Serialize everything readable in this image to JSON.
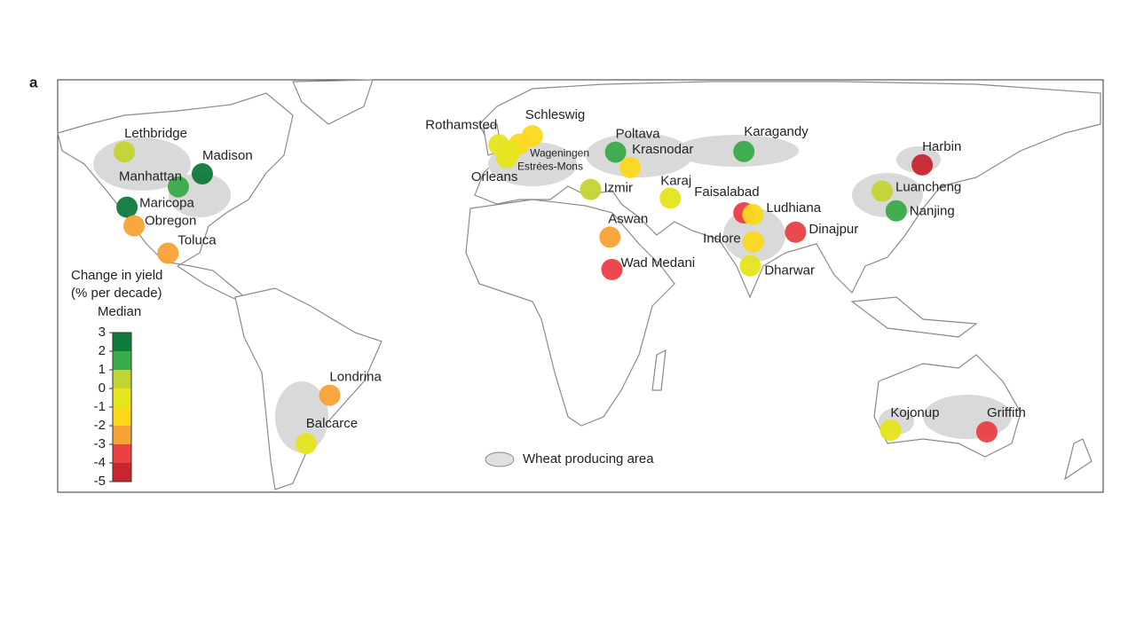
{
  "panel_label": "a",
  "map": {
    "lon_range": [
      -132.8,
      180.9
    ],
    "lat_range": [
      71.3,
      -52.4
    ]
  },
  "legend": {
    "title": [
      "Change in yield",
      "(% per decade)",
      "Median"
    ],
    "ticks": [
      3,
      2,
      1,
      0,
      -1,
      -2,
      -3,
      -4,
      -5
    ],
    "colors": [
      "#117a3d",
      "#3aaa4a",
      "#c3d432",
      "#e6e41e",
      "#fcd81c",
      "#f7a234",
      "#ea3f43",
      "#c8262e"
    ],
    "area_label": "Wheat producing area"
  },
  "sites": [
    {
      "name": "Lethbridge",
      "lat": 49.7,
      "lon": -112.8,
      "change": 0.5
    },
    {
      "name": "Madison",
      "lat": 43.1,
      "lon": -89.4,
      "change": 2.5
    },
    {
      "name": "Manhattan",
      "lat": 39.2,
      "lon": -96.6,
      "change": 1.5
    },
    {
      "name": "Maricopa",
      "lat": 33.1,
      "lon": -112.0,
      "change": 2.5
    },
    {
      "name": "Obregon",
      "lat": 27.5,
      "lon": -109.9,
      "change": -2.5
    },
    {
      "name": "Toluca",
      "lat": 19.3,
      "lon": -99.7,
      "change": -2.5
    },
    {
      "name": "Londrina",
      "lat": -23.3,
      "lon": -51.2,
      "change": -2.5
    },
    {
      "name": "Balcarce",
      "lat": -37.8,
      "lon": -58.3,
      "change": -0.5
    },
    {
      "name": "Kojonup",
      "lat": -33.8,
      "lon": 117.1,
      "change": -0.5
    },
    {
      "name": "Griffith",
      "lat": -34.3,
      "lon": 146.0,
      "change": -3.5
    },
    {
      "name": "Rothamsted",
      "lat": 51.8,
      "lon": -0.4,
      "change": -0.5
    },
    {
      "name": "Schleswig",
      "lat": 54.5,
      "lon": 9.6,
      "change": -1.5
    },
    {
      "name": "Wageningen",
      "lat": 52.0,
      "lon": 5.7,
      "change": -1.5
    },
    {
      "name": "Estrées-Mons",
      "lat": 49.9,
      "lon": 3.0,
      "change": -0.5
    },
    {
      "name": "Orleans",
      "lat": 47.9,
      "lon": 1.9,
      "change": -0.5
    },
    {
      "name": "Poltava",
      "lat": 49.6,
      "lon": 34.6,
      "change": 1.5
    },
    {
      "name": "Krasnodar",
      "lat": 45.0,
      "lon": 39.0,
      "change": -1.5
    },
    {
      "name": "Izmir",
      "lat": 38.4,
      "lon": 27.1,
      "change": 0.5
    },
    {
      "name": "Karaj",
      "lat": 35.8,
      "lon": 51.0,
      "change": -0.5
    },
    {
      "name": "Karagandy",
      "lat": 49.8,
      "lon": 73.1,
      "change": 1.5
    },
    {
      "name": "Faisalabad",
      "lat": 31.4,
      "lon": 73.1,
      "change": -3.5
    },
    {
      "name": "Ludhiana",
      "lat": 30.9,
      "lon": 75.8,
      "change": -1.5
    },
    {
      "name": "Indore",
      "lat": 22.7,
      "lon": 75.9,
      "change": -1.5
    },
    {
      "name": "Dharwar",
      "lat": 15.5,
      "lon": 75.0,
      "change": -0.5
    },
    {
      "name": "Dinajpur",
      "lat": 25.6,
      "lon": 88.6,
      "change": -3.5
    },
    {
      "name": "Wad Medani",
      "lat": 14.4,
      "lon": 33.5,
      "change": -3.5
    },
    {
      "name": "Aswan",
      "lat": 24.1,
      "lon": 32.9,
      "change": -2.5
    },
    {
      "name": "Harbin",
      "lat": 45.8,
      "lon": 126.6,
      "change": -4.5
    },
    {
      "name": "Luancheng",
      "lat": 37.9,
      "lon": 114.6,
      "change": 0.5
    },
    {
      "name": "Nanjing",
      "lat": 32.0,
      "lon": 118.8,
      "change": 1.5
    }
  ]
}
